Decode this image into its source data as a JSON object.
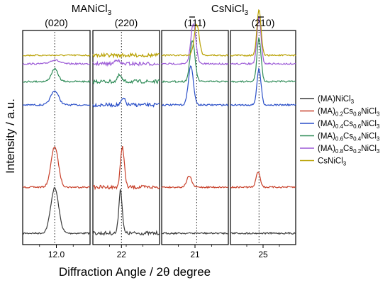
{
  "chart_data": {
    "type": "line",
    "ylabel": "Intensity / a.u.",
    "xlabel": "Diffraction Angle / 2θ degree",
    "group_labels": [
      {
        "text": "MANiCl",
        "sub": "3"
      },
      {
        "text": "CsNiCl",
        "sub": "3"
      }
    ],
    "legend_position": "right",
    "series": [
      {
        "name": "(MA)NiCl3",
        "color": "#3a3a3a",
        "label": [
          {
            "t": "(MA)NiCl"
          },
          {
            "t": "3",
            "s": 1
          }
        ]
      },
      {
        "name": "(MA)0.2Cs0.8NiCl3",
        "color": "#c8402a",
        "label": [
          {
            "t": "(MA)"
          },
          {
            "t": "0.2",
            "s": 1
          },
          {
            "t": "Cs"
          },
          {
            "t": "0.8",
            "s": 1
          },
          {
            "t": "NiCl"
          },
          {
            "t": "3",
            "s": 1
          }
        ]
      },
      {
        "name": "(MA)0.4Cs0.6NiCl3",
        "color": "#2a4fc8",
        "label": [
          {
            "t": "(MA)"
          },
          {
            "t": "0.4",
            "s": 1
          },
          {
            "t": "Cs"
          },
          {
            "t": "0.6",
            "s": 1
          },
          {
            "t": "NiCl"
          },
          {
            "t": "3",
            "s": 1
          }
        ]
      },
      {
        "name": "(MA)0.6Cs0.4NiCl3",
        "color": "#2e8b57",
        "label": [
          {
            "t": "(MA)"
          },
          {
            "t": "0.6",
            "s": 1
          },
          {
            "t": "Cs"
          },
          {
            "t": "0.4",
            "s": 1
          },
          {
            "t": "NiCl"
          },
          {
            "t": "3",
            "s": 1
          }
        ]
      },
      {
        "name": "(MA)0.8Cs0.2NiCl3",
        "color": "#9b59d6",
        "label": [
          {
            "t": "(MA)"
          },
          {
            "t": "0.8",
            "s": 1
          },
          {
            "t": "Cs"
          },
          {
            "t": "0.2",
            "s": 1
          },
          {
            "t": "NiCl"
          },
          {
            "t": "3",
            "s": 1
          }
        ]
      },
      {
        "name": "CsNiCl3",
        "color": "#b8a000",
        "label": [
          {
            "t": "CsNiCl"
          },
          {
            "t": "3",
            "s": 1
          }
        ]
      }
    ],
    "panels": [
      {
        "reflection": "(020)",
        "xlim": [
          11.4,
          12.6
        ],
        "ticks": [
          {
            "value": 12.0,
            "label": "12.0"
          }
        ],
        "reference_line": 11.97,
        "peaks": [
          {
            "series": "(MA)NiCl3",
            "center": 11.97,
            "height": 2.9,
            "width": 0.07
          },
          {
            "series": "(MA)0.2Cs0.8NiCl3",
            "center": 11.97,
            "height": 2.6,
            "width": 0.065
          },
          {
            "series": "(MA)0.4Cs0.6NiCl3",
            "center": 11.97,
            "height": 0.9,
            "width": 0.07
          },
          {
            "series": "(MA)0.6Cs0.4NiCl3",
            "center": 11.97,
            "height": 0.8,
            "width": 0.06
          },
          {
            "series": "(MA)0.8Cs0.2NiCl3",
            "center": 11.97,
            "height": 0.25,
            "width": 0.08
          },
          {
            "series": "CsNiCl3",
            "center": 11.97,
            "height": 0.0,
            "width": 0.08
          }
        ]
      },
      {
        "reflection": "(220)",
        "xlim": [
          21.7,
          22.4
        ],
        "ticks": [
          {
            "value": 22.0,
            "label": "22"
          }
        ],
        "reference_line": 22.0,
        "peaks": [
          {
            "series": "(MA)NiCl3",
            "center": 21.99,
            "height": 2.8,
            "width": 0.018
          },
          {
            "series": "(MA)0.2Cs0.8NiCl3",
            "center": 22.01,
            "height": 2.6,
            "width": 0.02
          },
          {
            "series": "(MA)0.4Cs0.6NiCl3",
            "center": 22.02,
            "height": 0.4,
            "width": 0.02
          },
          {
            "series": "(MA)0.6Cs0.4NiCl3",
            "center": 21.98,
            "height": 0.4,
            "width": 0.02
          },
          {
            "series": "(MA)0.8Cs0.2NiCl3",
            "center": 21.95,
            "height": 0.3,
            "width": 0.02
          },
          {
            "series": "CsNiCl3",
            "center": 22.0,
            "height": 0.0,
            "width": 0.02
          }
        ]
      },
      {
        "reflection": "(1 ̄1 ̄1)",
        "reflection_parts": [
          "(",
          "1",
          "1",
          "1",
          ")"
        ],
        "overbar_index": 1,
        "xlim": [
          20.6,
          21.4
        ],
        "ticks": [
          {
            "value": 21.0,
            "label": "21"
          }
        ],
        "reference_line": 21.02,
        "peaks": [
          {
            "series": "(MA)NiCl3",
            "center": 21.05,
            "height": 0.0,
            "width": 0.03
          },
          {
            "series": "(MA)0.2Cs0.8NiCl3",
            "center": 20.93,
            "height": 0.7,
            "width": 0.03
          },
          {
            "series": "(MA)0.4Cs0.6NiCl3",
            "center": 20.95,
            "height": 2.5,
            "width": 0.03
          },
          {
            "series": "(MA)0.6Cs0.4NiCl3",
            "center": 20.97,
            "height": 2.6,
            "width": 0.03
          },
          {
            "series": "(MA)0.8Cs0.2NiCl3",
            "center": 20.98,
            "height": 2.6,
            "width": 0.03
          },
          {
            "series": "CsNiCl3",
            "center": 21.02,
            "height": 2.0,
            "width": 0.03
          }
        ]
      },
      {
        "reflection": "(2 ̄1 0)",
        "reflection_parts": [
          "(",
          "2",
          "1",
          "0",
          ")"
        ],
        "overbar_index": 2,
        "xlim": [
          24.6,
          25.4
        ],
        "ticks": [
          {
            "value": 25.0,
            "label": "25"
          }
        ],
        "reference_line": 24.95,
        "peaks": [
          {
            "series": "(MA)NiCl3",
            "center": 24.95,
            "height": 0.0,
            "width": 0.03
          },
          {
            "series": "(MA)0.2Cs0.8NiCl3",
            "center": 24.94,
            "height": 1.0,
            "width": 0.025
          },
          {
            "series": "(MA)0.4Cs0.6NiCl3",
            "center": 24.95,
            "height": 2.3,
            "width": 0.025
          },
          {
            "series": "(MA)0.6Cs0.4NiCl3",
            "center": 24.95,
            "height": 2.8,
            "width": 0.025
          },
          {
            "series": "(MA)0.8Cs0.2NiCl3",
            "center": 24.95,
            "height": 3.0,
            "width": 0.025
          },
          {
            "series": "CsNiCl3",
            "center": 24.95,
            "height": 2.9,
            "width": 0.025
          }
        ]
      }
    ]
  }
}
